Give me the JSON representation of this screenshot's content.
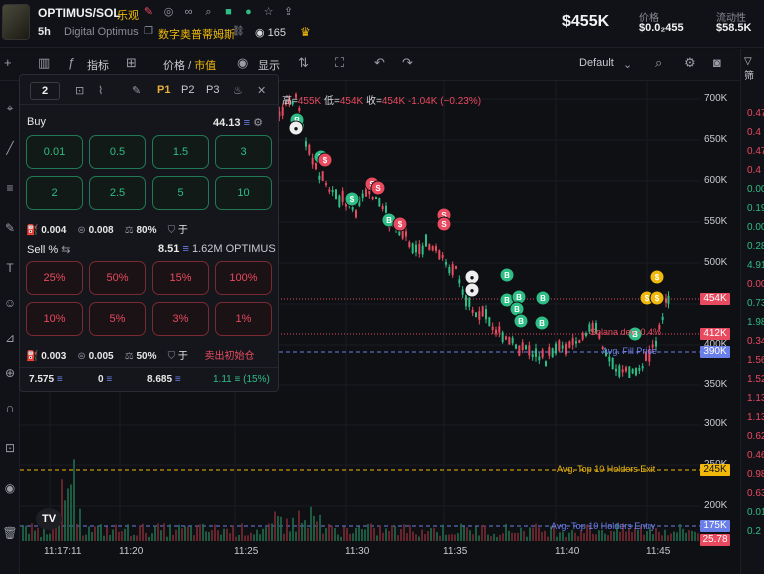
{
  "header": {
    "pair": "OPTIMUS/SOL",
    "pair_tag": "乐观",
    "timeframe": "5h",
    "project_name": "Digital Optimus",
    "project_name_cn": "数字奥普蒂姆斯",
    "viewers": "165",
    "price": "$455K",
    "price_label": "价格",
    "price_value": "$0.0₂455",
    "liquidity_label": "流动性",
    "liquidity_value": "$58.5K"
  },
  "toolbar": {
    "indicators_label": "指标",
    "price_label": "价格",
    "separator": "/",
    "market_cap_label": "市值",
    "display_label": "显示",
    "layout_label": "Default"
  },
  "right_panel": {
    "heading": "筛"
  },
  "ohlc": {
    "high_label": "高=",
    "high_value": "455K",
    "low_label": "低=",
    "low_value": "454K",
    "close_label": "收=",
    "close_value": "454K",
    "change": "-1.04K (−0.23%)"
  },
  "y_axis": {
    "labels": [
      "700K",
      "650K",
      "600K",
      "550K",
      "500K",
      "400K",
      "350K",
      "300K",
      "250K",
      "200K"
    ],
    "tags": [
      {
        "text": "454K",
        "color": "#e84a5f"
      },
      {
        "text": "412K",
        "color": "#e84a5f"
      },
      {
        "text": "390K",
        "color": "#6b7fe8"
      },
      {
        "text": "245K",
        "color": "#f0b90b"
      },
      {
        "text": "175K",
        "color": "#6b7fe8"
      },
      {
        "text": "25.78",
        "color": "#e84a5f"
      }
    ]
  },
  "x_axis": {
    "labels": [
      "11:17:11",
      "11:20",
      "11:25",
      "11:30",
      "11:35",
      "11:40",
      "11:45"
    ]
  },
  "chart_lines": {
    "sol_dev": "Solana dev  -0.4%",
    "avg_fill": "Avg. Fill Price",
    "top10_exit": "Avg. Top 10 Holders Exit",
    "top10_entry": "Avg. Top 10 Holders Entry"
  },
  "chart_data": {
    "type": "candlestick",
    "x": [
      "11:17",
      "11:20",
      "11:25",
      "11:30",
      "11:35",
      "11:40",
      "11:45"
    ],
    "ylim": [
      175000,
      710000
    ],
    "price_lines": [
      {
        "label": "454K",
        "value": 454000
      },
      {
        "label": "412K",
        "value": 412000
      },
      {
        "label": "390K",
        "value": 390000
      },
      {
        "label": "245K",
        "value": 245000
      },
      {
        "label": "175K",
        "value": 175000
      }
    ]
  },
  "right_col_values": [
    "0.47",
    "0.4",
    "0.47",
    "0.4",
    "0.00",
    "0.19",
    "0.00",
    "0.28",
    "4.91",
    "0.00",
    "0.73",
    "1.98",
    "0.34",
    "1.56",
    "1.52",
    "1.13",
    "1.13",
    "0.62",
    "0.46",
    "0.98",
    "0.63",
    "0.01",
    "0.2"
  ],
  "panel": {
    "tab_count": "2",
    "presets": [
      "P1",
      "P2",
      "P3"
    ],
    "buy_label": "Buy",
    "buy_balance": "44.13",
    "buy_amounts": [
      "0.01",
      "0.5",
      "1.5",
      "3",
      "2",
      "2.5",
      "5",
      "10"
    ],
    "buy_fee1": "0.004",
    "buy_fee2": "0.008",
    "buy_slippage": "80%",
    "buy_mev": "于",
    "sell_label": "Sell %",
    "sell_balance": "8.51",
    "sell_tokens": "1.62M OPTIMUS",
    "sell_amounts": [
      "25%",
      "50%",
      "15%",
      "100%",
      "10%",
      "5%",
      "3%",
      "1%"
    ],
    "sell_fee1": "0.003",
    "sell_fee2": "0.005",
    "sell_slippage": "50%",
    "sell_mev": "于",
    "sell_init": "卖出初始仓",
    "stat1": "7.575",
    "stat2": "0",
    "stat3": "8.685",
    "stat4": "1.11 ≡ (15%)"
  }
}
